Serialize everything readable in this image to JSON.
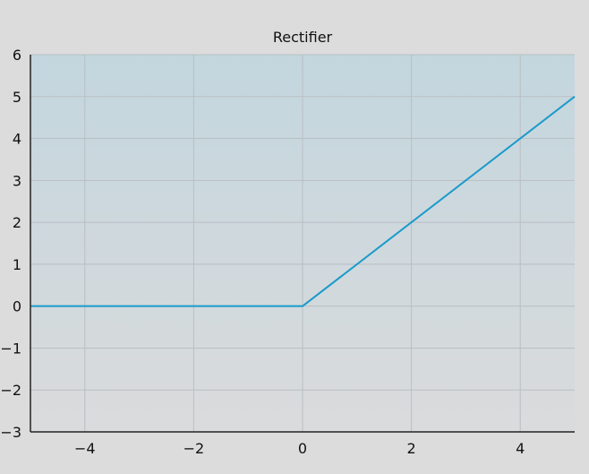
{
  "chart_data": {
    "type": "line",
    "title": "Rectifier",
    "xlabel": "",
    "ylabel": "",
    "xlim": [
      -5,
      5
    ],
    "ylim": [
      -3,
      6
    ],
    "xticks": [
      -4,
      -2,
      0,
      2,
      4
    ],
    "xtick_labels": [
      "−4",
      "−2",
      "0",
      "2",
      "4"
    ],
    "yticks": [
      -3,
      -2,
      -1,
      0,
      1,
      2,
      3,
      4,
      5,
      6
    ],
    "ytick_labels": [
      "−3",
      "−2",
      "−1",
      "0",
      "1",
      "2",
      "3",
      "4",
      "5",
      "6"
    ],
    "grid": true,
    "series": [
      {
        "x": [
          -5,
          0,
          5
        ],
        "y": [
          0,
          0,
          5
        ],
        "color": "#1a9acb"
      }
    ]
  },
  "colors": {
    "page_background": "#dcdcdc",
    "plot_gradient_top": "#c3d6de",
    "plot_gradient_bottom": "#dadbdc",
    "grid": "#b9bfc3",
    "axis": "#222222"
  }
}
